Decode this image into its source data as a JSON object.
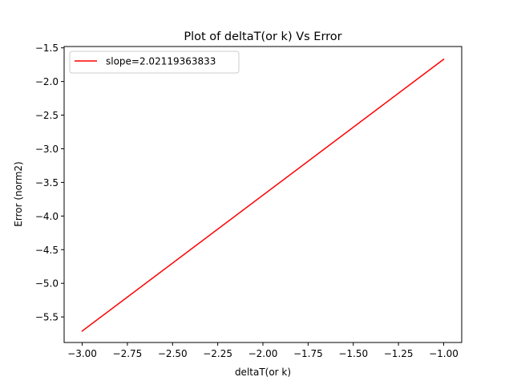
{
  "chart_data": {
    "type": "line",
    "title": "Plot of deltaT(or k) Vs Error",
    "xlabel": "deltaT(or k)",
    "ylabel": "Error (norm2)",
    "xlim": [
      -3.1,
      -0.9
    ],
    "ylim": [
      -5.88,
      -1.48
    ],
    "x_ticks": [
      -3.0,
      -2.75,
      -2.5,
      -2.25,
      -2.0,
      -1.75,
      -1.5,
      -1.25,
      -1.0
    ],
    "x_tick_labels": [
      "−3.00",
      "−2.75",
      "−2.50",
      "−2.25",
      "−2.00",
      "−1.75",
      "−1.50",
      "−1.25",
      "−1.00"
    ],
    "y_ticks": [
      -1.5,
      -2.0,
      -2.5,
      -3.0,
      -3.5,
      -4.0,
      -4.5,
      -5.0,
      -5.5
    ],
    "y_tick_labels": [
      "−1.5",
      "−2.0",
      "−2.5",
      "−3.0",
      "−3.5",
      "−4.0",
      "−4.5",
      "−5.0",
      "−5.5"
    ],
    "grid": false,
    "legend_position": "upper-left",
    "series": [
      {
        "name": "slope=2.02119363833",
        "color": "#ff0000",
        "x": [
          -3.0,
          -1.0
        ],
        "y": [
          -5.71,
          -1.67
        ]
      }
    ]
  }
}
